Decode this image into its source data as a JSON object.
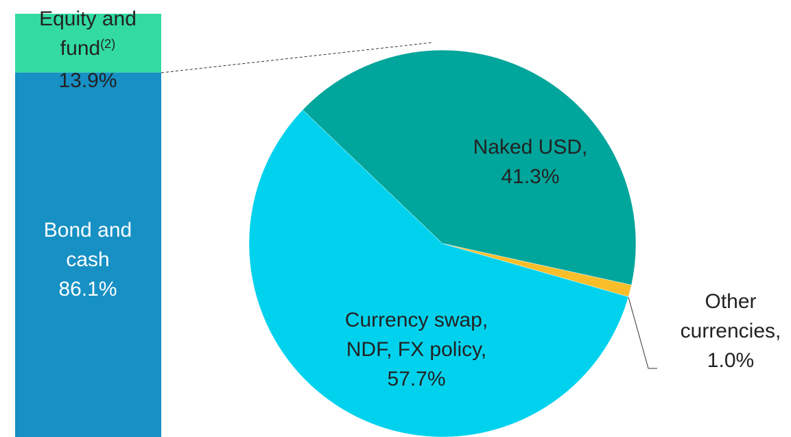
{
  "chart_data": [
    {
      "type": "stacked_bar",
      "series": [
        {
          "name": "Bond and cash",
          "color": "#1790c4",
          "values": [
            86.1
          ],
          "value_labels": [
            "86.1%"
          ]
        },
        {
          "name": "Equity and fund",
          "footnote_marker": "(2)",
          "color": "#33dba3",
          "values": [
            13.9
          ],
          "value_labels": [
            "13.9%"
          ]
        }
      ],
      "ylim": [
        0,
        100
      ]
    },
    {
      "type": "pie",
      "series": [
        {
          "name": "Naked USD,",
          "color": "#00a59b",
          "values": [
            41.3
          ],
          "value_labels": [
            "41.3%"
          ]
        },
        {
          "name": "Other currencies,",
          "color": "#f9be2a",
          "values": [
            1.0
          ],
          "value_labels": [
            "1.0%"
          ]
        },
        {
          "name": "Currency swap, NDF, FX policy,",
          "color": "#00d2ee",
          "values": [
            57.7
          ],
          "value_labels": [
            "57.7%"
          ]
        }
      ]
    }
  ]
}
